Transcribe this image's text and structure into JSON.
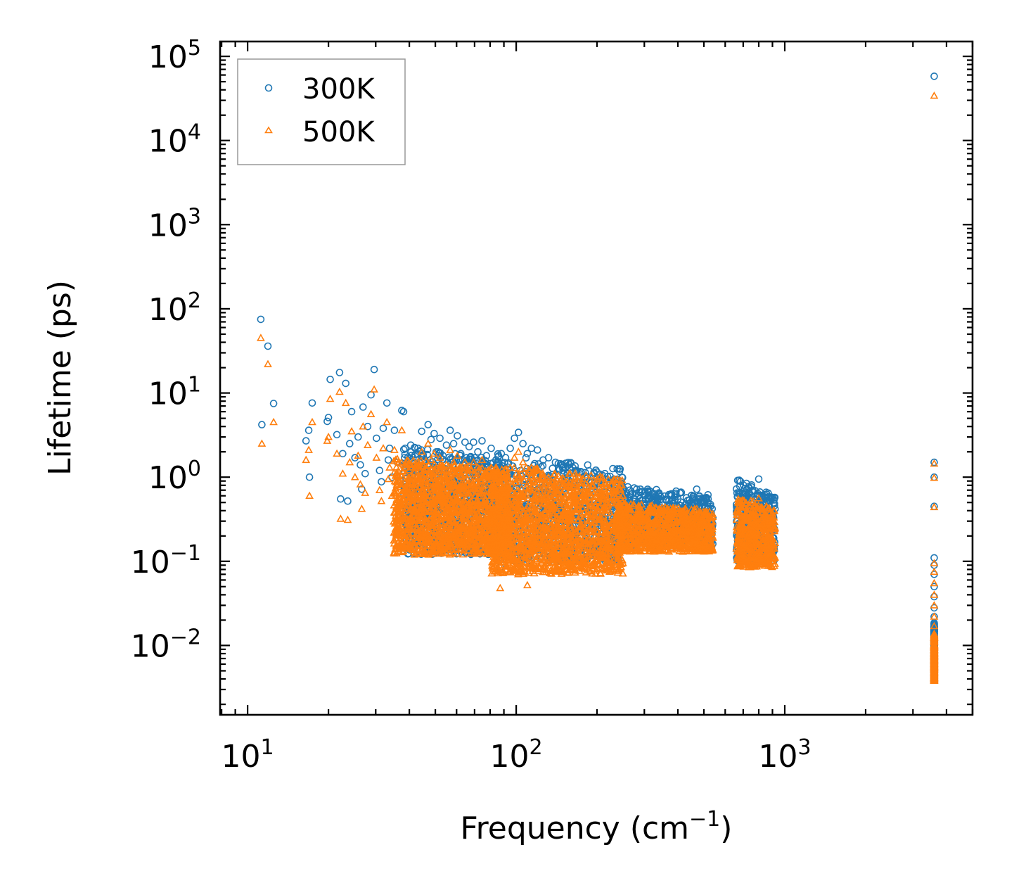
{
  "chart_data": {
    "type": "scatter",
    "xlabel": "Frequency (cm",
    "xlabel_sup": "−1",
    "xlabel_end": ")",
    "ylabel": "Lifetime (ps)",
    "xscale": "log",
    "yscale": "log",
    "xlim": [
      7.9,
      5000
    ],
    "ylim": [
      0.0015,
      150000
    ],
    "x_ticks": [
      {
        "value": 10,
        "base": "10",
        "exp": "1"
      },
      {
        "value": 100,
        "base": "10",
        "exp": "2"
      },
      {
        "value": 1000,
        "base": "10",
        "exp": "3"
      }
    ],
    "y_ticks": [
      {
        "value": 0.01,
        "base": "10",
        "exp": "−2"
      },
      {
        "value": 0.1,
        "base": "10",
        "exp": "−1"
      },
      {
        "value": 1,
        "base": "10",
        "exp": "0"
      },
      {
        "value": 10,
        "base": "10",
        "exp": "1"
      },
      {
        "value": 100,
        "base": "10",
        "exp": "2"
      },
      {
        "value": 1000,
        "base": "10",
        "exp": "3"
      },
      {
        "value": 10000,
        "base": "10",
        "exp": "4"
      },
      {
        "value": 100000,
        "base": "10",
        "exp": "5"
      }
    ],
    "legend_position": "top-left",
    "series": [
      {
        "name": "300K",
        "marker": "circle",
        "color": "#1f77b4",
        "points": [
          [
            11.2,
            75
          ],
          [
            11.3,
            4.2
          ],
          [
            11.9,
            36
          ],
          [
            12.5,
            7.5
          ],
          [
            16.5,
            2.7
          ],
          [
            16.9,
            3.6
          ],
          [
            17.0,
            1.0
          ],
          [
            17.4,
            7.6
          ],
          [
            19.8,
            4.6
          ],
          [
            20.0,
            5.1
          ],
          [
            20.3,
            14.5
          ],
          [
            21.5,
            3.2
          ],
          [
            22.0,
            17.5
          ],
          [
            22.2,
            0.55
          ],
          [
            22.6,
            1.9
          ],
          [
            23.2,
            13.0
          ],
          [
            23.6,
            0.52
          ],
          [
            24.0,
            2.5
          ],
          [
            24.4,
            6.0
          ],
          [
            25.1,
            1.7
          ],
          [
            25.8,
            3.0
          ],
          [
            26.3,
            1.4
          ],
          [
            26.6,
            0.72
          ],
          [
            26.9,
            6.8
          ],
          [
            27.4,
            1.1
          ],
          [
            28.0,
            4.0
          ],
          [
            28.8,
            9.5
          ],
          [
            29.6,
            19.0
          ],
          [
            30.2,
            2.9
          ],
          [
            31.0,
            1.2
          ],
          [
            31.5,
            0.88
          ],
          [
            32.0,
            3.8
          ],
          [
            33.0,
            7.6
          ],
          [
            33.4,
            1.6
          ],
          [
            33.8,
            2.2
          ],
          [
            34.5,
            1.0
          ],
          [
            35.2,
            3.6
          ],
          [
            36.1,
            1.5
          ],
          [
            37.0,
            0.92
          ],
          [
            37.5,
            6.2
          ],
          [
            38.1,
            6.0
          ],
          [
            38.6,
            2.2
          ],
          [
            39.5,
            1.4
          ],
          [
            40.5,
            2.4
          ],
          [
            41.3,
            1.7
          ],
          [
            42.2,
            0.76
          ],
          [
            43.1,
            2.2
          ],
          [
            44.5,
            3.5
          ],
          [
            45.8,
            1.6
          ],
          [
            47.0,
            4.2
          ],
          [
            48.2,
            2.8
          ],
          [
            49.5,
            3.3
          ],
          [
            50.6,
            1.3
          ],
          [
            52.0,
            2.9
          ],
          [
            53.4,
            1.8
          ],
          [
            55.0,
            2.4
          ],
          [
            56.8,
            3.6
          ],
          [
            58.5,
            2.5
          ],
          [
            60.4,
            3.1
          ],
          [
            62.2,
            1.9
          ],
          [
            64.5,
            2.6
          ],
          [
            66.8,
            2.3
          ],
          [
            69.4,
            2.6
          ],
          [
            72.0,
            2.0
          ],
          [
            74.6,
            2.7
          ],
          [
            77.5,
            1.8
          ],
          [
            80.7,
            2.2
          ],
          [
            84.1,
            1.6
          ],
          [
            87.2,
            0.085
          ],
          [
            88.0,
            1.9
          ],
          [
            91.3,
            1.7
          ],
          [
            95.0,
            2.2
          ],
          [
            98.5,
            2.9
          ],
          [
            102.0,
            3.4
          ],
          [
            106.0,
            2.5
          ],
          [
            110.0,
            1.9
          ],
          [
            114.0,
            2.2
          ],
          [
            120.0,
            2.1
          ],
          [
            126.0,
            1.6
          ],
          [
            132.0,
            1.7
          ],
          [
            140.0,
            1.5
          ],
          [
            148.0,
            1.4
          ],
          [
            158.0,
            1.3
          ],
          [
            168.0,
            1.2
          ],
          [
            180.0,
            1.0
          ],
          [
            195.0,
            1.1
          ],
          [
            210.0,
            0.95
          ],
          [
            225.0,
            0.85
          ],
          [
            245.0,
            0.8
          ],
          [
            265.0,
            0.7
          ],
          [
            290.0,
            0.72
          ],
          [
            315.0,
            0.68
          ],
          [
            340.0,
            0.65
          ],
          [
            370.0,
            0.62
          ],
          [
            400.0,
            0.55
          ],
          [
            430.0,
            0.48
          ],
          [
            470.0,
            0.72
          ],
          [
            495.0,
            0.5
          ],
          [
            520.0,
            0.42
          ],
          [
            540.0,
            0.33
          ],
          [
            680.0,
            0.78
          ],
          [
            720.0,
            0.6
          ],
          [
            760.0,
            0.7
          ],
          [
            800.0,
            0.95
          ],
          [
            840.0,
            0.62
          ],
          [
            880.0,
            0.52
          ],
          [
            920.0,
            0.42
          ],
          [
            3600.0,
            58000
          ],
          [
            3600.0,
            1.5
          ],
          [
            3600.0,
            1.0
          ],
          [
            3600.0,
            0.45
          ],
          [
            3600.0,
            0.11
          ],
          [
            3600.0,
            0.09
          ],
          [
            3600.0,
            0.07
          ],
          [
            3600.0,
            0.05
          ],
          [
            3600.0,
            0.038
          ],
          [
            3600.0,
            0.028
          ],
          [
            3600.0,
            0.022
          ],
          [
            3600.0,
            0.018
          ],
          [
            3600.0,
            0.014
          ],
          [
            3600.0,
            0.011
          ],
          [
            3600.0,
            0.009
          ],
          [
            3600.0,
            0.007
          ],
          [
            3600.0,
            0.0055
          ],
          [
            3600.0,
            0.0045
          ]
        ]
      },
      {
        "name": "500K",
        "marker": "triangle",
        "color": "#ff7f0e",
        "points": [
          [
            11.2,
            45
          ],
          [
            11.3,
            2.5
          ],
          [
            11.9,
            22
          ],
          [
            12.5,
            4.5
          ],
          [
            16.5,
            1.6
          ],
          [
            16.9,
            2.1
          ],
          [
            17.0,
            0.6
          ],
          [
            17.4,
            4.5
          ],
          [
            19.8,
            2.7
          ],
          [
            20.0,
            3.0
          ],
          [
            20.3,
            8.5
          ],
          [
            21.5,
            1.9
          ],
          [
            22.0,
            10.3
          ],
          [
            22.2,
            0.32
          ],
          [
            22.6,
            1.1
          ],
          [
            23.2,
            7.6
          ],
          [
            23.6,
            0.31
          ],
          [
            24.0,
            1.5
          ],
          [
            24.4,
            3.5
          ],
          [
            25.1,
            1.0
          ],
          [
            25.8,
            1.8
          ],
          [
            26.3,
            0.82
          ],
          [
            26.6,
            0.42
          ],
          [
            26.9,
            4.0
          ],
          [
            27.4,
            0.65
          ],
          [
            28.0,
            2.4
          ],
          [
            28.8,
            5.6
          ],
          [
            29.6,
            11.0
          ],
          [
            30.2,
            1.7
          ],
          [
            31.0,
            0.7
          ],
          [
            31.5,
            0.52
          ],
          [
            32.0,
            2.2
          ],
          [
            33.0,
            4.5
          ],
          [
            33.4,
            0.95
          ],
          [
            33.8,
            1.3
          ],
          [
            34.5,
            0.6
          ],
          [
            35.2,
            2.1
          ],
          [
            36.1,
            0.88
          ],
          [
            37.0,
            0.54
          ],
          [
            37.5,
            3.6
          ],
          [
            38.1,
            0.2
          ],
          [
            38.6,
            1.3
          ],
          [
            39.5,
            0.82
          ],
          [
            40.5,
            1.4
          ],
          [
            41.3,
            1.0
          ],
          [
            42.2,
            0.45
          ],
          [
            43.1,
            1.3
          ],
          [
            44.5,
            2.0
          ],
          [
            45.8,
            0.95
          ],
          [
            47.0,
            2.5
          ],
          [
            48.2,
            1.6
          ],
          [
            49.5,
            1.9
          ],
          [
            50.6,
            0.76
          ],
          [
            52.0,
            1.7
          ],
          [
            53.4,
            1.05
          ],
          [
            55.0,
            1.4
          ],
          [
            56.8,
            2.1
          ],
          [
            58.5,
            1.5
          ],
          [
            60.4,
            1.8
          ],
          [
            62.2,
            1.1
          ],
          [
            64.5,
            1.5
          ],
          [
            66.8,
            1.35
          ],
          [
            69.4,
            1.5
          ],
          [
            72.0,
            1.2
          ],
          [
            74.6,
            1.6
          ],
          [
            77.5,
            1.05
          ],
          [
            80.7,
            1.3
          ],
          [
            84.1,
            0.95
          ],
          [
            87.2,
            0.048
          ],
          [
            88.0,
            1.1
          ],
          [
            91.3,
            1.0
          ],
          [
            95.0,
            1.3
          ],
          [
            98.5,
            1.7
          ],
          [
            102.0,
            2.0
          ],
          [
            106.0,
            1.5
          ],
          [
            110.0,
            0.052
          ],
          [
            114.0,
            1.3
          ],
          [
            120.0,
            1.2
          ],
          [
            126.0,
            0.95
          ],
          [
            132.0,
            1.0
          ],
          [
            140.0,
            0.88
          ],
          [
            148.0,
            0.82
          ],
          [
            158.0,
            0.76
          ],
          [
            168.0,
            0.7
          ],
          [
            180.0,
            0.6
          ],
          [
            195.0,
            0.65
          ],
          [
            210.0,
            0.56
          ],
          [
            225.0,
            0.5
          ],
          [
            245.0,
            0.47
          ],
          [
            265.0,
            0.41
          ],
          [
            290.0,
            0.42
          ],
          [
            315.0,
            0.4
          ],
          [
            340.0,
            0.38
          ],
          [
            370.0,
            0.36
          ],
          [
            400.0,
            0.32
          ],
          [
            430.0,
            0.28
          ],
          [
            470.0,
            0.42
          ],
          [
            495.0,
            0.29
          ],
          [
            520.0,
            0.25
          ],
          [
            540.0,
            0.19
          ],
          [
            680.0,
            0.46
          ],
          [
            720.0,
            0.35
          ],
          [
            760.0,
            0.41
          ],
          [
            800.0,
            0.56
          ],
          [
            840.0,
            0.36
          ],
          [
            880.0,
            0.3
          ],
          [
            920.0,
            0.25
          ],
          [
            3600.0,
            34000
          ],
          [
            3600.0,
            1.45
          ],
          [
            3600.0,
            0.98
          ],
          [
            3600.0,
            0.44
          ],
          [
            3600.0,
            0.095
          ],
          [
            3600.0,
            0.075
          ],
          [
            3600.0,
            0.055
          ],
          [
            3600.0,
            0.04
          ],
          [
            3600.0,
            0.03
          ],
          [
            3600.0,
            0.022
          ],
          [
            3600.0,
            0.017
          ],
          [
            3600.0,
            0.013
          ],
          [
            3600.0,
            0.01
          ],
          [
            3600.0,
            0.008
          ],
          [
            3600.0,
            0.0062
          ],
          [
            3600.0,
            0.0048
          ],
          [
            3600.0,
            0.004
          ]
        ]
      }
    ],
    "clusters": [
      {
        "series": 0,
        "xmin": 38,
        "xmax": 95,
        "ymin": 0.12,
        "ymax": 2.4,
        "count": 900
      },
      {
        "series": 0,
        "xmin": 80,
        "xmax": 250,
        "ymin": 0.1,
        "ymax": 2.0,
        "count": 900
      },
      {
        "series": 0,
        "xmin": 240,
        "xmax": 540,
        "ymin": 0.15,
        "ymax": 0.8,
        "count": 700
      },
      {
        "series": 0,
        "xmin": 660,
        "xmax": 920,
        "ymin": 0.1,
        "ymax": 0.95,
        "count": 450
      },
      {
        "series": 0,
        "xmin": 3600,
        "xmax": 3600,
        "ymin": 0.004,
        "ymax": 0.02,
        "count": 220
      },
      {
        "series": 1,
        "xmin": 35,
        "xmax": 95,
        "ymin": 0.12,
        "ymax": 1.8,
        "count": 1400
      },
      {
        "series": 1,
        "xmin": 80,
        "xmax": 250,
        "ymin": 0.07,
        "ymax": 1.5,
        "count": 1500
      },
      {
        "series": 1,
        "xmin": 240,
        "xmax": 540,
        "ymin": 0.13,
        "ymax": 0.5,
        "count": 900
      },
      {
        "series": 1,
        "xmin": 660,
        "xmax": 920,
        "ymin": 0.085,
        "ymax": 0.6,
        "count": 500
      },
      {
        "series": 1,
        "xmin": 3600,
        "xmax": 3600,
        "ymin": 0.0038,
        "ymax": 0.015,
        "count": 260
      }
    ]
  }
}
